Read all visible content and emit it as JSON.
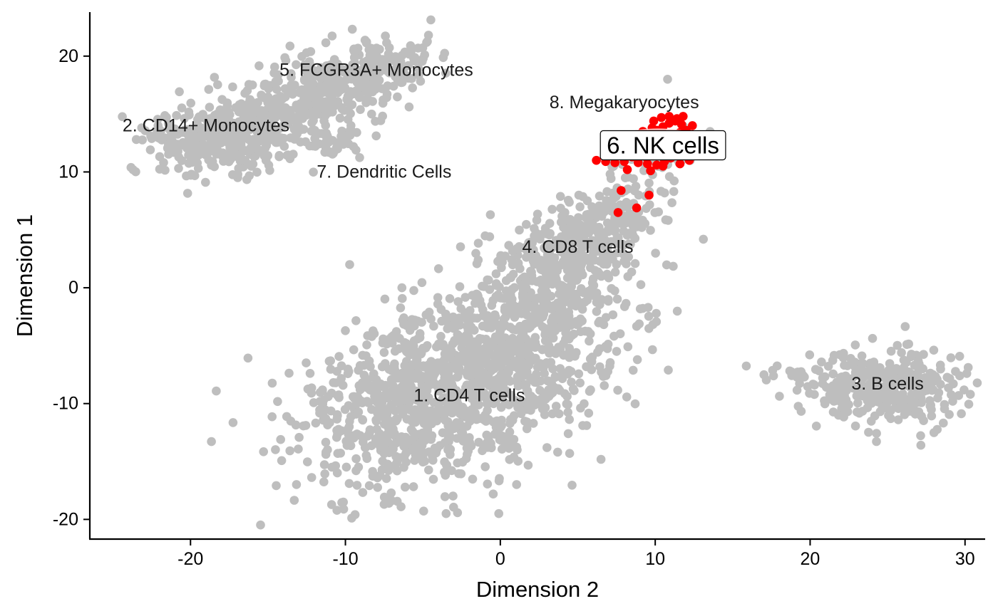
{
  "chart_data": {
    "type": "scatter",
    "xlabel": "Dimension 2",
    "ylabel": "Dimension 1",
    "xlim": [
      -26.5,
      31.3
    ],
    "ylim": [
      -21.7,
      23.8
    ],
    "xticks": [
      -20,
      -10,
      0,
      10,
      20,
      30
    ],
    "yticks": [
      -20,
      -10,
      0,
      10,
      20
    ],
    "xtick_labels": [
      "-20",
      "-10",
      "0",
      "10",
      "20",
      "30"
    ],
    "ytick_labels": [
      "-20",
      "-10",
      "0",
      "10",
      "20"
    ],
    "grid": false,
    "background_color": "#bebebe",
    "highlight_color": "#ff0000",
    "highlight_cluster": "6. NK cells",
    "clusters": [
      {
        "label": "1. CD4 T cells",
        "x": -2,
        "y": -9.3
      },
      {
        "label": "2. CD14+ Monocytes",
        "x": -19,
        "y": 14
      },
      {
        "label": "3. B cells",
        "x": 25,
        "y": -8.3
      },
      {
        "label": "4. CD8 T cells",
        "x": 5,
        "y": 3.5
      },
      {
        "label": "5. FCGR3A+ Monocytes",
        "x": -8,
        "y": 18.8
      },
      {
        "label": "6. NK cells",
        "x": 10.5,
        "y": 12.3
      },
      {
        "label": "7. Dendritic Cells",
        "x": -7.5,
        "y": 10
      },
      {
        "label": "8. Megakaryocytes",
        "x": 8,
        "y": 16
      }
    ],
    "highlight_points": [
      [
        6.2,
        11.0
      ],
      [
        6.9,
        11.4
      ],
      [
        7.6,
        11.9
      ],
      [
        8.2,
        12.2
      ],
      [
        8.8,
        12.5
      ],
      [
        9.3,
        12.9
      ],
      [
        9.7,
        13.2
      ],
      [
        10.1,
        13.6
      ],
      [
        10.5,
        13.9
      ],
      [
        10.9,
        14.2
      ],
      [
        11.3,
        14.4
      ],
      [
        11.7,
        14.1
      ],
      [
        12.0,
        13.6
      ],
      [
        12.3,
        13.0
      ],
      [
        12.1,
        12.5
      ],
      [
        11.8,
        12.0
      ],
      [
        11.4,
        11.6
      ],
      [
        11.0,
        11.2
      ],
      [
        10.6,
        10.9
      ],
      [
        10.1,
        10.6
      ],
      [
        9.7,
        10.1
      ],
      [
        9.4,
        11.3
      ],
      [
        9.0,
        11.7
      ],
      [
        8.5,
        11.3
      ],
      [
        8.0,
        10.9
      ],
      [
        7.4,
        10.8
      ],
      [
        6.8,
        10.9
      ],
      [
        10.3,
        12.3
      ],
      [
        10.8,
        12.7
      ],
      [
        11.2,
        13.1
      ],
      [
        11.6,
        13.4
      ],
      [
        10.0,
        12.0
      ],
      [
        9.6,
        12.4
      ],
      [
        9.9,
        14.4
      ],
      [
        10.4,
        14.7
      ],
      [
        10.9,
        14.8
      ],
      [
        11.4,
        14.6
      ],
      [
        12.6,
        12.2
      ],
      [
        12.2,
        11.0
      ],
      [
        11.6,
        10.7
      ],
      [
        10.5,
        10.5
      ],
      [
        9.8,
        13.8
      ],
      [
        9.2,
        13.5
      ],
      [
        8.7,
        13.1
      ],
      [
        8.1,
        12.8
      ],
      [
        7.5,
        12.4
      ],
      [
        7.0,
        12.0
      ],
      [
        11.8,
        14.8
      ],
      [
        12.4,
        14.0
      ],
      [
        10.2,
        11.7
      ],
      [
        11.1,
        11.9
      ],
      [
        11.5,
        12.6
      ],
      [
        12.0,
        12.9
      ],
      [
        9.5,
        10.7
      ],
      [
        8.9,
        10.8
      ],
      [
        8.2,
        10.2
      ],
      [
        7.8,
        8.4
      ],
      [
        9.6,
        8.0
      ],
      [
        8.8,
        6.9
      ],
      [
        7.6,
        6.5
      ]
    ]
  }
}
